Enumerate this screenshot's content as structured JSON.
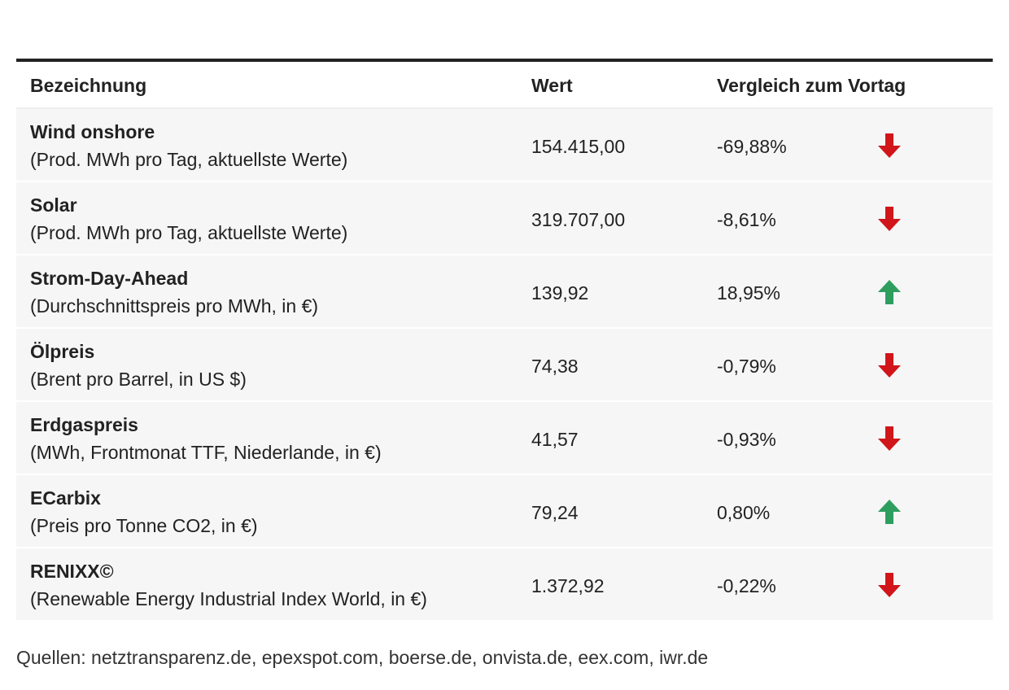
{
  "table": {
    "header": [
      "Bezeichnung",
      "Wert",
      "Vergleich zum Vortag"
    ],
    "rows": [
      {
        "name": "Wind onshore",
        "description": "(Prod. MWh pro Tag, aktuellste Werte)",
        "value": "154.415,00",
        "change": "-69,88%"
      },
      {
        "name": "Solar",
        "description": "(Prod. MWh pro Tag, aktuellste Werte)",
        "value": "319.707,00",
        "change": "-8,61%"
      },
      {
        "name": "Strom-Day-Ahead",
        "description": "(Durchschnittspreis pro MWh, in €)",
        "value": "139,92",
        "change": "18,95%"
      },
      {
        "name": "Ölpreis",
        "description": "(Brent pro Barrel, in US $)",
        "value": "74,38",
        "change": "-0,79%"
      },
      {
        "name": "Erdgaspreis",
        "description": "(MWh, Frontmonat TTF, Niederlande, in €)",
        "value": "41,57",
        "change": "-0,93%"
      },
      {
        "name": "ECarbix",
        "description": "(Preis pro Tonne CO2, in €)",
        "value": "79,24",
        "change": "0,80%"
      },
      {
        "name": "RENIXX©",
        "description": "(Renewable Energy Industrial Index World, in €)",
        "value": "1.372,92",
        "change": "-0,22%"
      }
    ]
  },
  "source": "Quellen: netztransparenz.de, epexspot.com, boerse.de, onvista.de, eex.com, iwr.de"
}
